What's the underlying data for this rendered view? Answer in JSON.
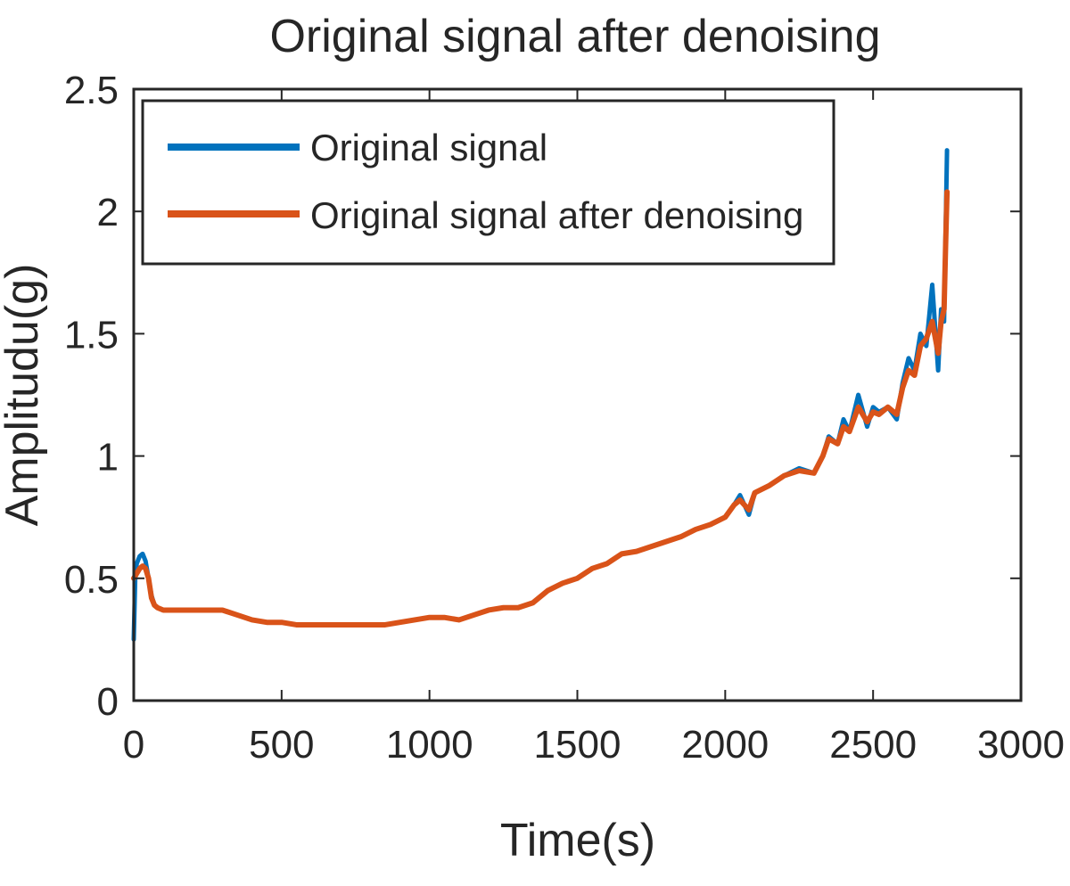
{
  "chart_data": {
    "type": "line",
    "title": "Original signal after denoising",
    "xlabel": "Time(s)",
    "ylabel": "Amplitudu(g)",
    "xlim": [
      0,
      3000
    ],
    "ylim": [
      0,
      2.5
    ],
    "xticks": [
      0,
      500,
      1000,
      1500,
      2000,
      2500,
      3000
    ],
    "yticks": [
      0,
      0.5,
      1,
      1.5,
      2,
      2.5
    ],
    "xtick_labels": [
      "0",
      "500",
      "1000",
      "1500",
      "2000",
      "2500",
      "3000"
    ],
    "ytick_labels": [
      "0",
      "0.5",
      "1",
      "1.5",
      "2",
      "2.5"
    ],
    "grid": false,
    "legend_position": "top-left",
    "series": [
      {
        "name": "Original signal",
        "color": "#0072BD",
        "x": [
          0,
          5,
          10,
          20,
          30,
          40,
          50,
          60,
          70,
          80,
          100,
          130,
          160,
          200,
          250,
          300,
          350,
          400,
          450,
          500,
          550,
          600,
          650,
          700,
          750,
          800,
          850,
          900,
          950,
          1000,
          1050,
          1100,
          1150,
          1200,
          1250,
          1300,
          1350,
          1400,
          1450,
          1500,
          1550,
          1600,
          1650,
          1700,
          1750,
          1800,
          1850,
          1900,
          1950,
          2000,
          2030,
          2050,
          2080,
          2100,
          2150,
          2200,
          2250,
          2300,
          2330,
          2350,
          2380,
          2400,
          2420,
          2450,
          2480,
          2500,
          2520,
          2550,
          2580,
          2600,
          2620,
          2640,
          2660,
          2680,
          2700,
          2720,
          2730,
          2740,
          2745,
          2750
        ],
        "values": [
          0.25,
          0.5,
          0.56,
          0.59,
          0.6,
          0.57,
          0.5,
          0.43,
          0.39,
          0.38,
          0.37,
          0.37,
          0.37,
          0.37,
          0.37,
          0.37,
          0.35,
          0.33,
          0.32,
          0.32,
          0.31,
          0.31,
          0.31,
          0.31,
          0.31,
          0.31,
          0.31,
          0.32,
          0.33,
          0.34,
          0.34,
          0.33,
          0.35,
          0.37,
          0.38,
          0.38,
          0.4,
          0.45,
          0.48,
          0.5,
          0.54,
          0.56,
          0.6,
          0.61,
          0.63,
          0.65,
          0.67,
          0.7,
          0.72,
          0.75,
          0.8,
          0.84,
          0.76,
          0.85,
          0.88,
          0.92,
          0.95,
          0.93,
          1.0,
          1.08,
          1.05,
          1.15,
          1.1,
          1.25,
          1.12,
          1.2,
          1.18,
          1.2,
          1.15,
          1.3,
          1.4,
          1.35,
          1.5,
          1.45,
          1.7,
          1.35,
          1.6,
          1.55,
          1.9,
          2.25
        ]
      },
      {
        "name": "Original signal after denoising",
        "color": "#D95319",
        "x": [
          0,
          10,
          20,
          30,
          40,
          50,
          60,
          70,
          80,
          100,
          130,
          160,
          200,
          250,
          300,
          350,
          400,
          450,
          500,
          550,
          600,
          650,
          700,
          750,
          800,
          850,
          900,
          950,
          1000,
          1050,
          1100,
          1150,
          1200,
          1250,
          1300,
          1350,
          1400,
          1450,
          1500,
          1550,
          1600,
          1650,
          1700,
          1750,
          1800,
          1850,
          1900,
          1950,
          2000,
          2030,
          2050,
          2080,
          2100,
          2150,
          2200,
          2250,
          2300,
          2330,
          2350,
          2380,
          2400,
          2420,
          2450,
          2480,
          2500,
          2520,
          2550,
          2580,
          2600,
          2620,
          2640,
          2660,
          2680,
          2700,
          2720,
          2730,
          2740,
          2745,
          2750
        ],
        "values": [
          0.5,
          0.52,
          0.54,
          0.55,
          0.54,
          0.5,
          0.42,
          0.39,
          0.38,
          0.37,
          0.37,
          0.37,
          0.37,
          0.37,
          0.37,
          0.35,
          0.33,
          0.32,
          0.32,
          0.31,
          0.31,
          0.31,
          0.31,
          0.31,
          0.31,
          0.31,
          0.32,
          0.33,
          0.34,
          0.34,
          0.33,
          0.35,
          0.37,
          0.38,
          0.38,
          0.4,
          0.45,
          0.48,
          0.5,
          0.54,
          0.56,
          0.6,
          0.61,
          0.63,
          0.65,
          0.67,
          0.7,
          0.72,
          0.75,
          0.8,
          0.82,
          0.78,
          0.85,
          0.88,
          0.92,
          0.94,
          0.93,
          1.0,
          1.07,
          1.05,
          1.12,
          1.1,
          1.2,
          1.14,
          1.18,
          1.17,
          1.2,
          1.17,
          1.28,
          1.35,
          1.33,
          1.45,
          1.48,
          1.55,
          1.42,
          1.55,
          1.6,
          1.85,
          2.08
        ]
      }
    ]
  }
}
